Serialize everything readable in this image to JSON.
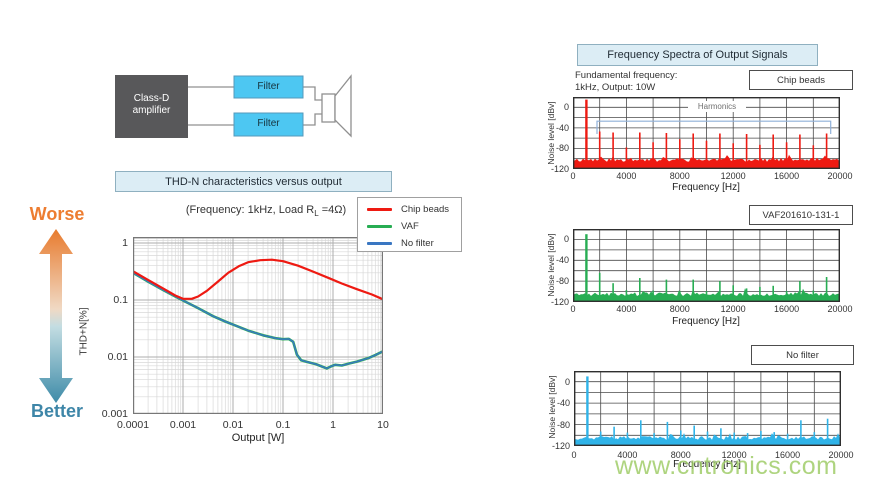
{
  "diagram": {
    "amplifier_line1": "Class-D",
    "amplifier_line2": "amplifier",
    "filter1_label": "Filter",
    "filter2_label": "Filter",
    "speaker_icon": "speaker-icon"
  },
  "scale_indicator": {
    "worse_label": "Worse",
    "better_label": "Better",
    "worse_color": "#ed7d31",
    "better_color": "#3e86a8",
    "arrow_icon": "worse-better-double-arrow-icon"
  },
  "right_panel": {
    "title": "Frequency Spectra of Output Signals",
    "fundamental_line1": "Fundamental frequency:",
    "fundamental_line2": "1kHz, Output: 10W"
  },
  "watermark": {
    "text": "www.cntronics.com"
  },
  "chart_data": [
    {
      "id": "thd",
      "type": "line",
      "title": "THD-N characteristics versus output",
      "subtitle_pre": "(Frequency: 1kHz, Load R",
      "subtitle_sub": "L",
      "subtitle_post": " =4Ω)",
      "xlabel": "Output [W]",
      "ylabel": "THD+N[%]",
      "xscale": "log",
      "yscale": "log",
      "xlim": [
        0.0001,
        10
      ],
      "ylim": [
        0.001,
        1.27
      ],
      "xtick_labels": [
        "0.0001",
        "0.001",
        "0.01",
        "0.1",
        "1",
        "10"
      ],
      "ytick_labels": [
        "1",
        "0.1",
        "0.01",
        "0.001"
      ],
      "grid": true,
      "legend_position": "top-right",
      "series": [
        {
          "name": "VAF",
          "color": "#27ad53",
          "points": [
            [
              0.0001,
              0.3
            ],
            [
              0.0002,
              0.21
            ],
            [
              0.0004,
              0.15
            ],
            [
              0.0007,
              0.115
            ],
            [
              0.001,
              0.098
            ],
            [
              0.002,
              0.072
            ],
            [
              0.004,
              0.052
            ],
            [
              0.007,
              0.042
            ],
            [
              0.01,
              0.037
            ],
            [
              0.02,
              0.029
            ],
            [
              0.04,
              0.024
            ],
            [
              0.07,
              0.0215
            ],
            [
              0.1,
              0.0205
            ],
            [
              0.13,
              0.0208
            ],
            [
              0.16,
              0.0185
            ],
            [
              0.19,
              0.011
            ],
            [
              0.23,
              0.0088
            ],
            [
              0.3,
              0.0082
            ],
            [
              0.45,
              0.0075
            ],
            [
              0.6,
              0.0068
            ],
            [
              0.75,
              0.0063
            ],
            [
              0.9,
              0.0068
            ],
            [
              1.1,
              0.0073
            ],
            [
              1.5,
              0.0071
            ],
            [
              2,
              0.0076
            ],
            [
              3,
              0.0083
            ],
            [
              5,
              0.0095
            ],
            [
              7,
              0.0108
            ],
            [
              10,
              0.0126
            ]
          ]
        },
        {
          "name": "No filter",
          "color": "#3a77c2",
          "points": [
            [
              0.0001,
              0.3
            ],
            [
              0.0002,
              0.21
            ],
            [
              0.0004,
              0.15
            ],
            [
              0.0007,
              0.115
            ],
            [
              0.001,
              0.098
            ],
            [
              0.002,
              0.072
            ],
            [
              0.004,
              0.052
            ],
            [
              0.007,
              0.042
            ],
            [
              0.01,
              0.037
            ],
            [
              0.02,
              0.029
            ],
            [
              0.04,
              0.024
            ],
            [
              0.07,
              0.0215
            ],
            [
              0.1,
              0.0205
            ],
            [
              0.13,
              0.0208
            ],
            [
              0.16,
              0.0185
            ],
            [
              0.19,
              0.011
            ],
            [
              0.23,
              0.0088
            ],
            [
              0.3,
              0.0082
            ],
            [
              0.45,
              0.0075
            ],
            [
              0.6,
              0.0068
            ],
            [
              0.75,
              0.0063
            ],
            [
              0.9,
              0.0068
            ],
            [
              1.1,
              0.0073
            ],
            [
              1.5,
              0.0071
            ],
            [
              2,
              0.0076
            ],
            [
              3,
              0.0083
            ],
            [
              5,
              0.0095
            ],
            [
              7,
              0.0108
            ],
            [
              10,
              0.0126
            ]
          ]
        },
        {
          "name": "Chip beads",
          "color": "#ee1a12",
          "points": [
            [
              0.0001,
              0.32
            ],
            [
              0.0002,
              0.225
            ],
            [
              0.0004,
              0.16
            ],
            [
              0.0007,
              0.12
            ],
            [
              0.001,
              0.105
            ],
            [
              0.0015,
              0.105
            ],
            [
              0.002,
              0.115
            ],
            [
              0.003,
              0.145
            ],
            [
              0.005,
              0.21
            ],
            [
              0.008,
              0.3
            ],
            [
              0.013,
              0.39
            ],
            [
              0.02,
              0.46
            ],
            [
              0.035,
              0.5
            ],
            [
              0.06,
              0.51
            ],
            [
              0.1,
              0.48
            ],
            [
              0.2,
              0.4
            ],
            [
              0.4,
              0.315
            ],
            [
              0.8,
              0.245
            ],
            [
              1.5,
              0.195
            ],
            [
              3,
              0.155
            ],
            [
              6,
              0.125
            ],
            [
              10,
              0.103
            ]
          ]
        }
      ],
      "legend_order": [
        "Chip beads",
        "VAF",
        "No filter"
      ]
    },
    {
      "id": "spectrum-chipbeads",
      "type": "bar",
      "label": "Chip beads",
      "color": "#ee1a12",
      "xlabel": "Frequency [Hz]",
      "ylabel": "Noise level [dBv]",
      "xlim": [
        0,
        20000
      ],
      "ylim": [
        -120,
        20
      ],
      "xtick_labels": [
        "0",
        "4000",
        "8000",
        "12000",
        "16000",
        "20000"
      ],
      "ytick_labels": [
        "0",
        "-40",
        "-80",
        "-120"
      ],
      "fundamental_hz": 1000,
      "noise_base": -102,
      "noise_amp": 8,
      "seed": 11,
      "annotation": {
        "text": "Harmonics",
        "span": [
          1800,
          19300
        ],
        "level_db": -27,
        "end_db": -52
      },
      "peaks": [
        [
          1000,
          15
        ],
        [
          2000,
          -47
        ],
        [
          3000,
          -49
        ],
        [
          4000,
          -78
        ],
        [
          5000,
          -49
        ],
        [
          6000,
          -68
        ],
        [
          7000,
          -50
        ],
        [
          8000,
          -62
        ],
        [
          9000,
          -51
        ],
        [
          10000,
          -65
        ],
        [
          11000,
          -51
        ],
        [
          12000,
          -70
        ],
        [
          13000,
          -52
        ],
        [
          14000,
          -73
        ],
        [
          15000,
          -53
        ],
        [
          16000,
          -68
        ],
        [
          17000,
          -53
        ],
        [
          18000,
          -74
        ],
        [
          19000,
          -51
        ],
        [
          20000,
          -60
        ]
      ]
    },
    {
      "id": "spectrum-vaf",
      "type": "bar",
      "label": "VAF201610-131-1",
      "color": "#27ad53",
      "xlabel": "Frequency [Hz]",
      "ylabel": "Noise level [dBv]",
      "xlim": [
        0,
        20000
      ],
      "ylim": [
        -120,
        20
      ],
      "xtick_labels": [
        "0",
        "4000",
        "8000",
        "12000",
        "16000",
        "20000"
      ],
      "ytick_labels": [
        "0",
        "-40",
        "-80",
        "-120"
      ],
      "fundamental_hz": 1000,
      "noise_base": -105,
      "noise_amp": 7,
      "seed": 23,
      "peaks": [
        [
          1000,
          10
        ],
        [
          2000,
          -64
        ],
        [
          3000,
          -84
        ],
        [
          4000,
          -97
        ],
        [
          5000,
          -74
        ],
        [
          6000,
          -98
        ],
        [
          7000,
          -77
        ],
        [
          8000,
          -99
        ],
        [
          9000,
          -77
        ],
        [
          10000,
          -99
        ],
        [
          11000,
          -80
        ],
        [
          12000,
          -88
        ],
        [
          13000,
          -94
        ],
        [
          14000,
          -91
        ],
        [
          15000,
          -89
        ],
        [
          16000,
          -99
        ],
        [
          17000,
          -80
        ],
        [
          18000,
          -98
        ],
        [
          19000,
          -72
        ],
        [
          20000,
          -99
        ]
      ]
    },
    {
      "id": "spectrum-nofilter",
      "type": "bar",
      "label": "No filter",
      "color": "#2fb3e8",
      "xlabel": "Frequency [Hz]",
      "ylabel": "Noise level [dBv]",
      "xlim": [
        0,
        20000
      ],
      "ylim": [
        -120,
        20
      ],
      "xtick_labels": [
        "0",
        "4000",
        "8000",
        "12000",
        "16000",
        "20000"
      ],
      "ytick_labels": [
        "0",
        "-40",
        "-80",
        "-120"
      ],
      "fundamental_hz": 1000,
      "noise_base": -105,
      "noise_amp": 7,
      "seed": 37,
      "peaks": [
        [
          1000,
          10
        ],
        [
          2000,
          -93
        ],
        [
          3000,
          -84
        ],
        [
          4000,
          -95
        ],
        [
          5000,
          -72
        ],
        [
          6000,
          -96
        ],
        [
          7000,
          -75
        ],
        [
          8000,
          -91
        ],
        [
          9000,
          -82
        ],
        [
          10000,
          -93
        ],
        [
          11000,
          -87
        ],
        [
          12000,
          -95
        ],
        [
          13000,
          -96
        ],
        [
          14000,
          -92
        ],
        [
          15000,
          -94
        ],
        [
          16000,
          -97
        ],
        [
          17000,
          -72
        ],
        [
          18000,
          -94
        ],
        [
          19000,
          -69
        ],
        [
          20000,
          -95
        ]
      ]
    }
  ]
}
